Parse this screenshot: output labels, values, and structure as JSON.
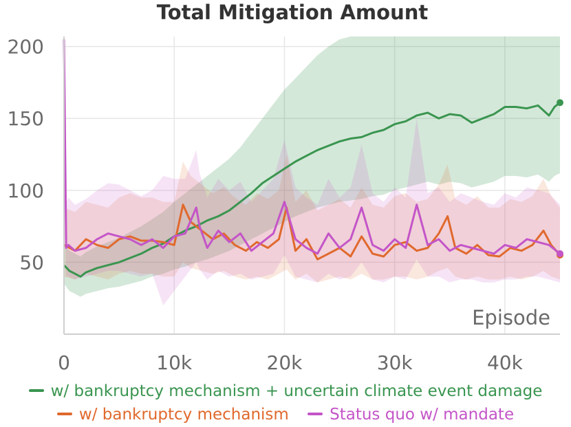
{
  "colors": {
    "green": "#3a9550",
    "orange": "#e0692d",
    "purple": "#c455c8",
    "grid": "#e6e6e6",
    "axis": "#cfcfcf"
  },
  "chart_data": {
    "type": "line",
    "title": "Total Mitigation Amount",
    "xlabel": "Episode",
    "ylabel": "",
    "xlim": [
      0,
      45000
    ],
    "ylim": [
      0,
      207
    ],
    "x_ticks": [
      0,
      10000,
      20000,
      30000,
      40000
    ],
    "x_tick_labels": [
      "0",
      "10k",
      "20k",
      "30k",
      "40k"
    ],
    "y_ticks": [
      50,
      100,
      150,
      200
    ],
    "y_tick_labels": [
      "50",
      "100",
      "150",
      "200"
    ],
    "grid": true,
    "legend_position": "bottom",
    "series": [
      {
        "name": "w/ bankruptcy mechanism + uncertain climate event damage",
        "color": "green",
        "x": [
          0,
          500,
          1000,
          1500,
          2000,
          3000,
          4000,
          5000,
          6000,
          7000,
          8000,
          9000,
          10000,
          11000,
          12000,
          13000,
          14000,
          15000,
          16000,
          17000,
          18000,
          19000,
          20000,
          21000,
          22000,
          23000,
          24000,
          25000,
          26000,
          27000,
          28000,
          29000,
          30000,
          31000,
          32000,
          33000,
          34000,
          35000,
          36000,
          37000,
          38000,
          39000,
          40000,
          41000,
          42000,
          43000,
          44000,
          44500,
          45000
        ],
        "values": [
          48,
          44,
          42,
          40,
          43,
          46,
          48,
          50,
          53,
          56,
          60,
          63,
          68,
          72,
          75,
          79,
          82,
          86,
          92,
          98,
          105,
          110,
          115,
          120,
          124,
          128,
          131,
          134,
          136,
          137,
          140,
          142,
          146,
          148,
          152,
          154,
          150,
          153,
          152,
          147,
          150,
          153,
          158,
          158,
          157,
          159,
          152,
          158,
          161
        ],
        "band_lower": [
          35,
          30,
          28,
          26,
          28,
          30,
          32,
          33,
          35,
          37,
          40,
          42,
          45,
          47,
          50,
          52,
          55,
          58,
          62,
          66,
          70,
          74,
          78,
          82,
          85,
          88,
          90,
          92,
          93,
          94,
          96,
          97,
          100,
          102,
          104,
          106,
          104,
          106,
          105,
          102,
          104,
          106,
          110,
          110,
          109,
          111,
          106,
          110,
          112
        ],
        "band_upper": [
          62,
          58,
          56,
          54,
          57,
          61,
          64,
          67,
          71,
          75,
          80,
          85,
          92,
          98,
          104,
          110,
          116,
          122,
          130,
          140,
          150,
          160,
          170,
          178,
          186,
          194,
          200,
          205,
          207,
          207,
          207,
          207,
          207,
          207,
          207,
          207,
          207,
          207,
          207,
          207,
          207,
          207,
          207,
          207,
          207,
          207,
          207,
          207,
          207
        ],
        "end_marker": true
      },
      {
        "name": "w/ bankruptcy mechanism",
        "color": "orange",
        "x": [
          0,
          1000,
          2000,
          3000,
          4000,
          5000,
          6000,
          7000,
          8000,
          9000,
          10000,
          10800,
          11500,
          12500,
          13500,
          14500,
          15500,
          16500,
          17500,
          18500,
          19500,
          20200,
          21000,
          22000,
          23000,
          24000,
          25000,
          26000,
          27000,
          28000,
          29000,
          30000,
          31000,
          32000,
          33000,
          34000,
          34800,
          35500,
          36500,
          37500,
          38500,
          39500,
          40500,
          41500,
          42500,
          43500,
          44200,
          45000
        ],
        "values": [
          62,
          58,
          66,
          62,
          60,
          66,
          68,
          65,
          65,
          64,
          62,
          90,
          78,
          72,
          66,
          70,
          62,
          58,
          64,
          60,
          66,
          88,
          58,
          66,
          52,
          56,
          60,
          54,
          68,
          56,
          54,
          62,
          64,
          58,
          60,
          70,
          82,
          60,
          56,
          62,
          55,
          54,
          60,
          58,
          62,
          72,
          62,
          55
        ],
        "band_lower": [
          40,
          38,
          42,
          40,
          38,
          42,
          44,
          42,
          42,
          40,
          40,
          50,
          46,
          44,
          42,
          44,
          40,
          38,
          40,
          38,
          42,
          45,
          38,
          42,
          36,
          38,
          40,
          38,
          42,
          38,
          38,
          40,
          40,
          38,
          40,
          44,
          46,
          40,
          38,
          40,
          38,
          38,
          40,
          38,
          40,
          44,
          40,
          38
        ],
        "band_upper": [
          88,
          85,
          92,
          90,
          88,
          95,
          98,
          95,
          95,
          92,
          92,
          120,
          110,
          104,
          98,
          102,
          95,
          90,
          98,
          94,
          100,
          125,
          92,
          100,
          86,
          90,
          94,
          88,
          102,
          90,
          88,
          96,
          98,
          92,
          94,
          104,
          118,
          94,
          90,
          96,
          88,
          88,
          94,
          92,
          96,
          108,
          96,
          88
        ],
        "end_marker": true
      },
      {
        "name": "Status quo w/ mandate",
        "color": "purple",
        "x": [
          0,
          200,
          400,
          1000,
          2000,
          3000,
          4000,
          5000,
          6000,
          7000,
          8000,
          9000,
          10000,
          11000,
          12000,
          12300,
          13000,
          14000,
          15000,
          16000,
          17000,
          18000,
          19000,
          20000,
          21000,
          22000,
          23000,
          24000,
          25000,
          26000,
          27000,
          28000,
          29000,
          30000,
          31000,
          32000,
          33000,
          34000,
          35000,
          36000,
          37000,
          38000,
          39000,
          40000,
          41000,
          42000,
          43000,
          44000,
          45000
        ],
        "values": [
          205,
          60,
          62,
          58,
          60,
          66,
          70,
          68,
          66,
          62,
          66,
          60,
          68,
          70,
          88,
          75,
          60,
          72,
          64,
          70,
          58,
          64,
          70,
          92,
          66,
          60,
          56,
          70,
          60,
          66,
          88,
          62,
          58,
          66,
          60,
          90,
          62,
          66,
          58,
          62,
          60,
          58,
          56,
          62,
          60,
          66,
          64,
          62,
          56
        ],
        "band_lower": [
          120,
          40,
          40,
          38,
          40,
          42,
          44,
          44,
          42,
          40,
          42,
          20,
          30,
          40,
          50,
          45,
          38,
          44,
          40,
          42,
          38,
          40,
          42,
          55,
          40,
          38,
          36,
          42,
          38,
          40,
          50,
          38,
          36,
          40,
          38,
          52,
          40,
          40,
          36,
          38,
          38,
          36,
          36,
          38,
          38,
          40,
          40,
          38,
          36
        ],
        "band_upper": [
          207,
          92,
          95,
          90,
          94,
          100,
          105,
          104,
          100,
          96,
          100,
          110,
          108,
          108,
          128,
          112,
          95,
          108,
          100,
          106,
          92,
          100,
          108,
          135,
          102,
          95,
          90,
          108,
          95,
          102,
          132,
          98,
          92,
          102,
          95,
          150,
          98,
          102,
          92,
          98,
          95,
          92,
          90,
          98,
          95,
          102,
          100,
          98,
          90
        ],
        "end_marker": true
      }
    ]
  }
}
